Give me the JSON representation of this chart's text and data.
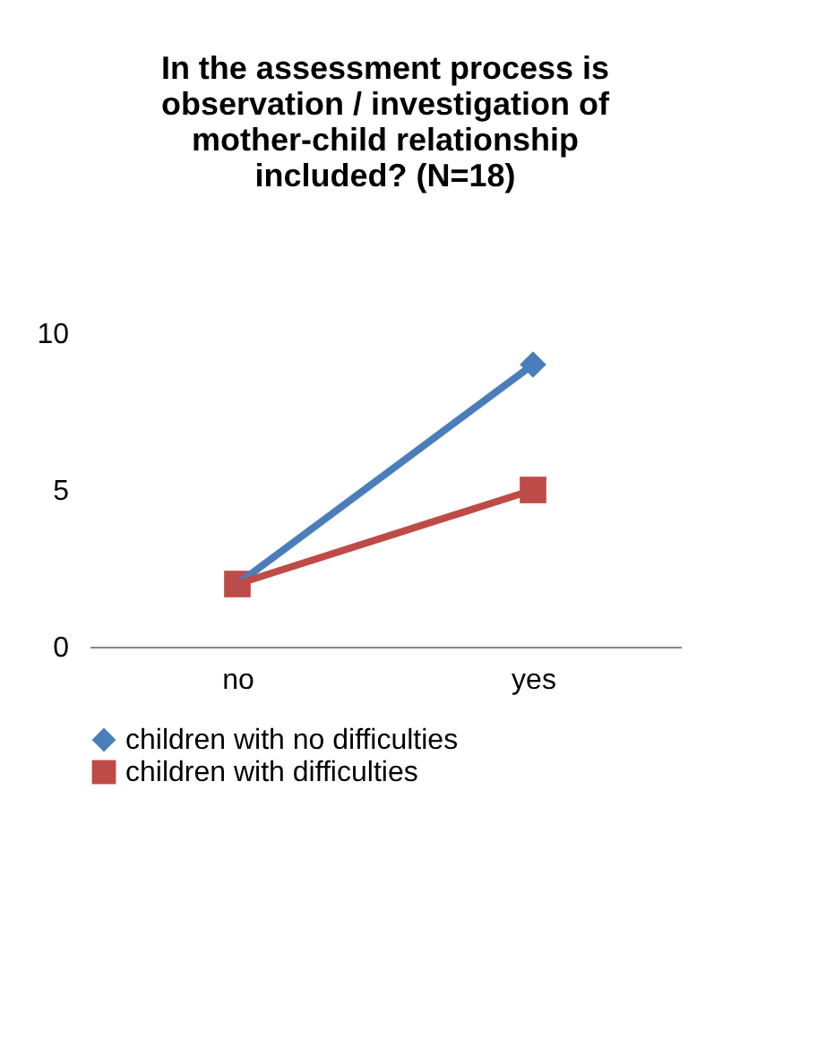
{
  "chart_data": {
    "type": "line",
    "title": "In the assessment process is observation / investigation of mother-child relationship included? (N=18)",
    "categories": [
      "no",
      "yes"
    ],
    "series": [
      {
        "name": "children with no difficulties",
        "color": "#4a7ebb",
        "values": [
          2,
          9
        ],
        "marker": "diamond"
      },
      {
        "name": "children with difficulties",
        "color": "#be4b48",
        "values": [
          2,
          5
        ],
        "marker": "square"
      }
    ],
    "ylim": [
      0,
      10
    ],
    "yticks": [
      0,
      5,
      10
    ],
    "grid": false,
    "legend": "bottom"
  }
}
